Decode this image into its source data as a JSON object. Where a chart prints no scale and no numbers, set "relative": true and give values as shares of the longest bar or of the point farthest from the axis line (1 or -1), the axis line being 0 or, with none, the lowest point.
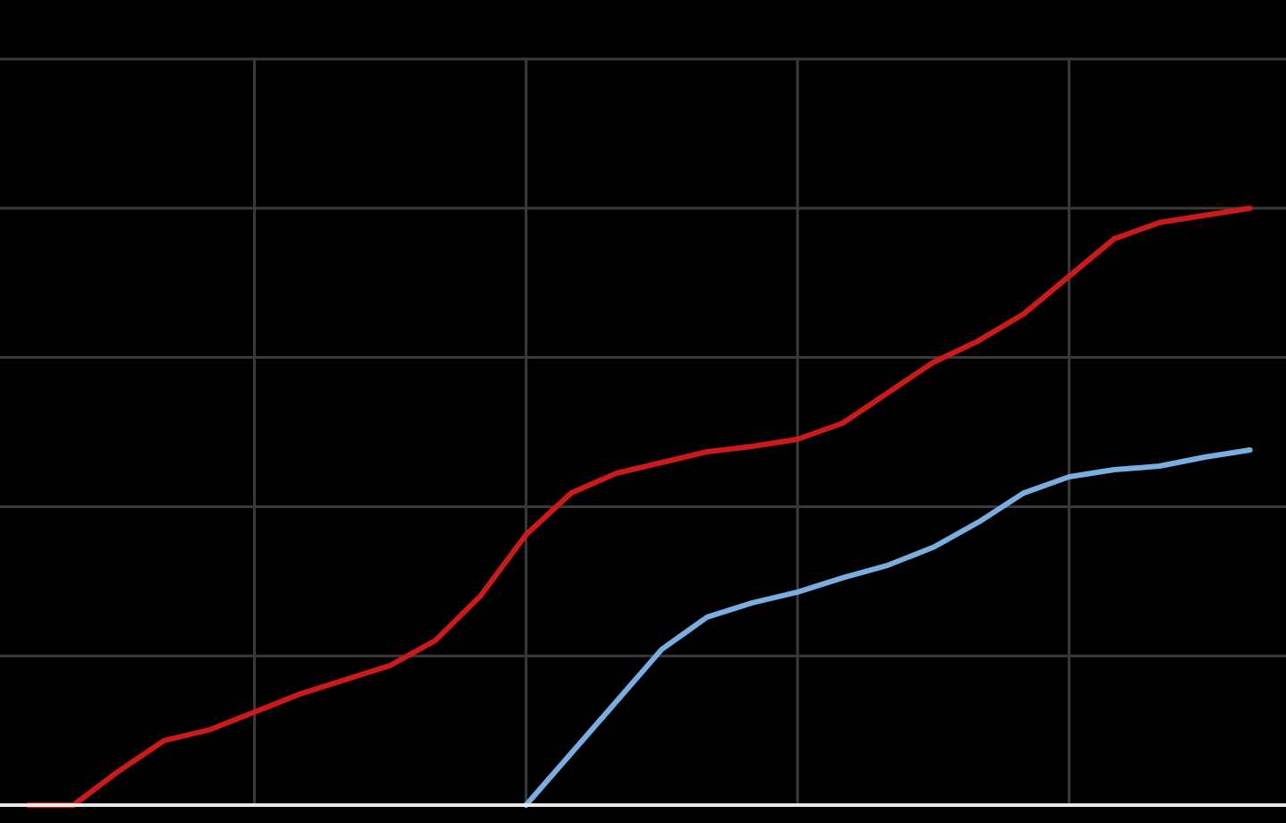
{
  "chart_data": {
    "type": "line",
    "relative": true,
    "grid": true,
    "categories": [
      null,
      null,
      null,
      null,
      null,
      null,
      null,
      null,
      null,
      null,
      null,
      null,
      null,
      null,
      null,
      null,
      null,
      null,
      null,
      null,
      null,
      null,
      null,
      null,
      null,
      null,
      null,
      null
    ],
    "series": [
      {
        "color": "#cc1a1a",
        "values": [
          0,
          0,
          0.057,
          0.108,
          0.126,
          0.156,
          0.186,
          0.21,
          0.234,
          0.276,
          0.351,
          0.453,
          0.523,
          0.556,
          0.574,
          0.592,
          0.601,
          0.613,
          0.64,
          0.691,
          0.742,
          0.778,
          0.823,
          0.886,
          0.949,
          0.976,
          0.988,
          1
        ]
      },
      {
        "color": "#7aaee0",
        "values": [
          null,
          null,
          null,
          null,
          null,
          null,
          null,
          null,
          null,
          null,
          null,
          0,
          0.087,
          0.174,
          0.261,
          0.315,
          0.339,
          0.357,
          0.381,
          0.402,
          0.432,
          0.474,
          0.523,
          0.55,
          0.562,
          0.568,
          0.583,
          0.595
        ]
      }
    ]
  }
}
